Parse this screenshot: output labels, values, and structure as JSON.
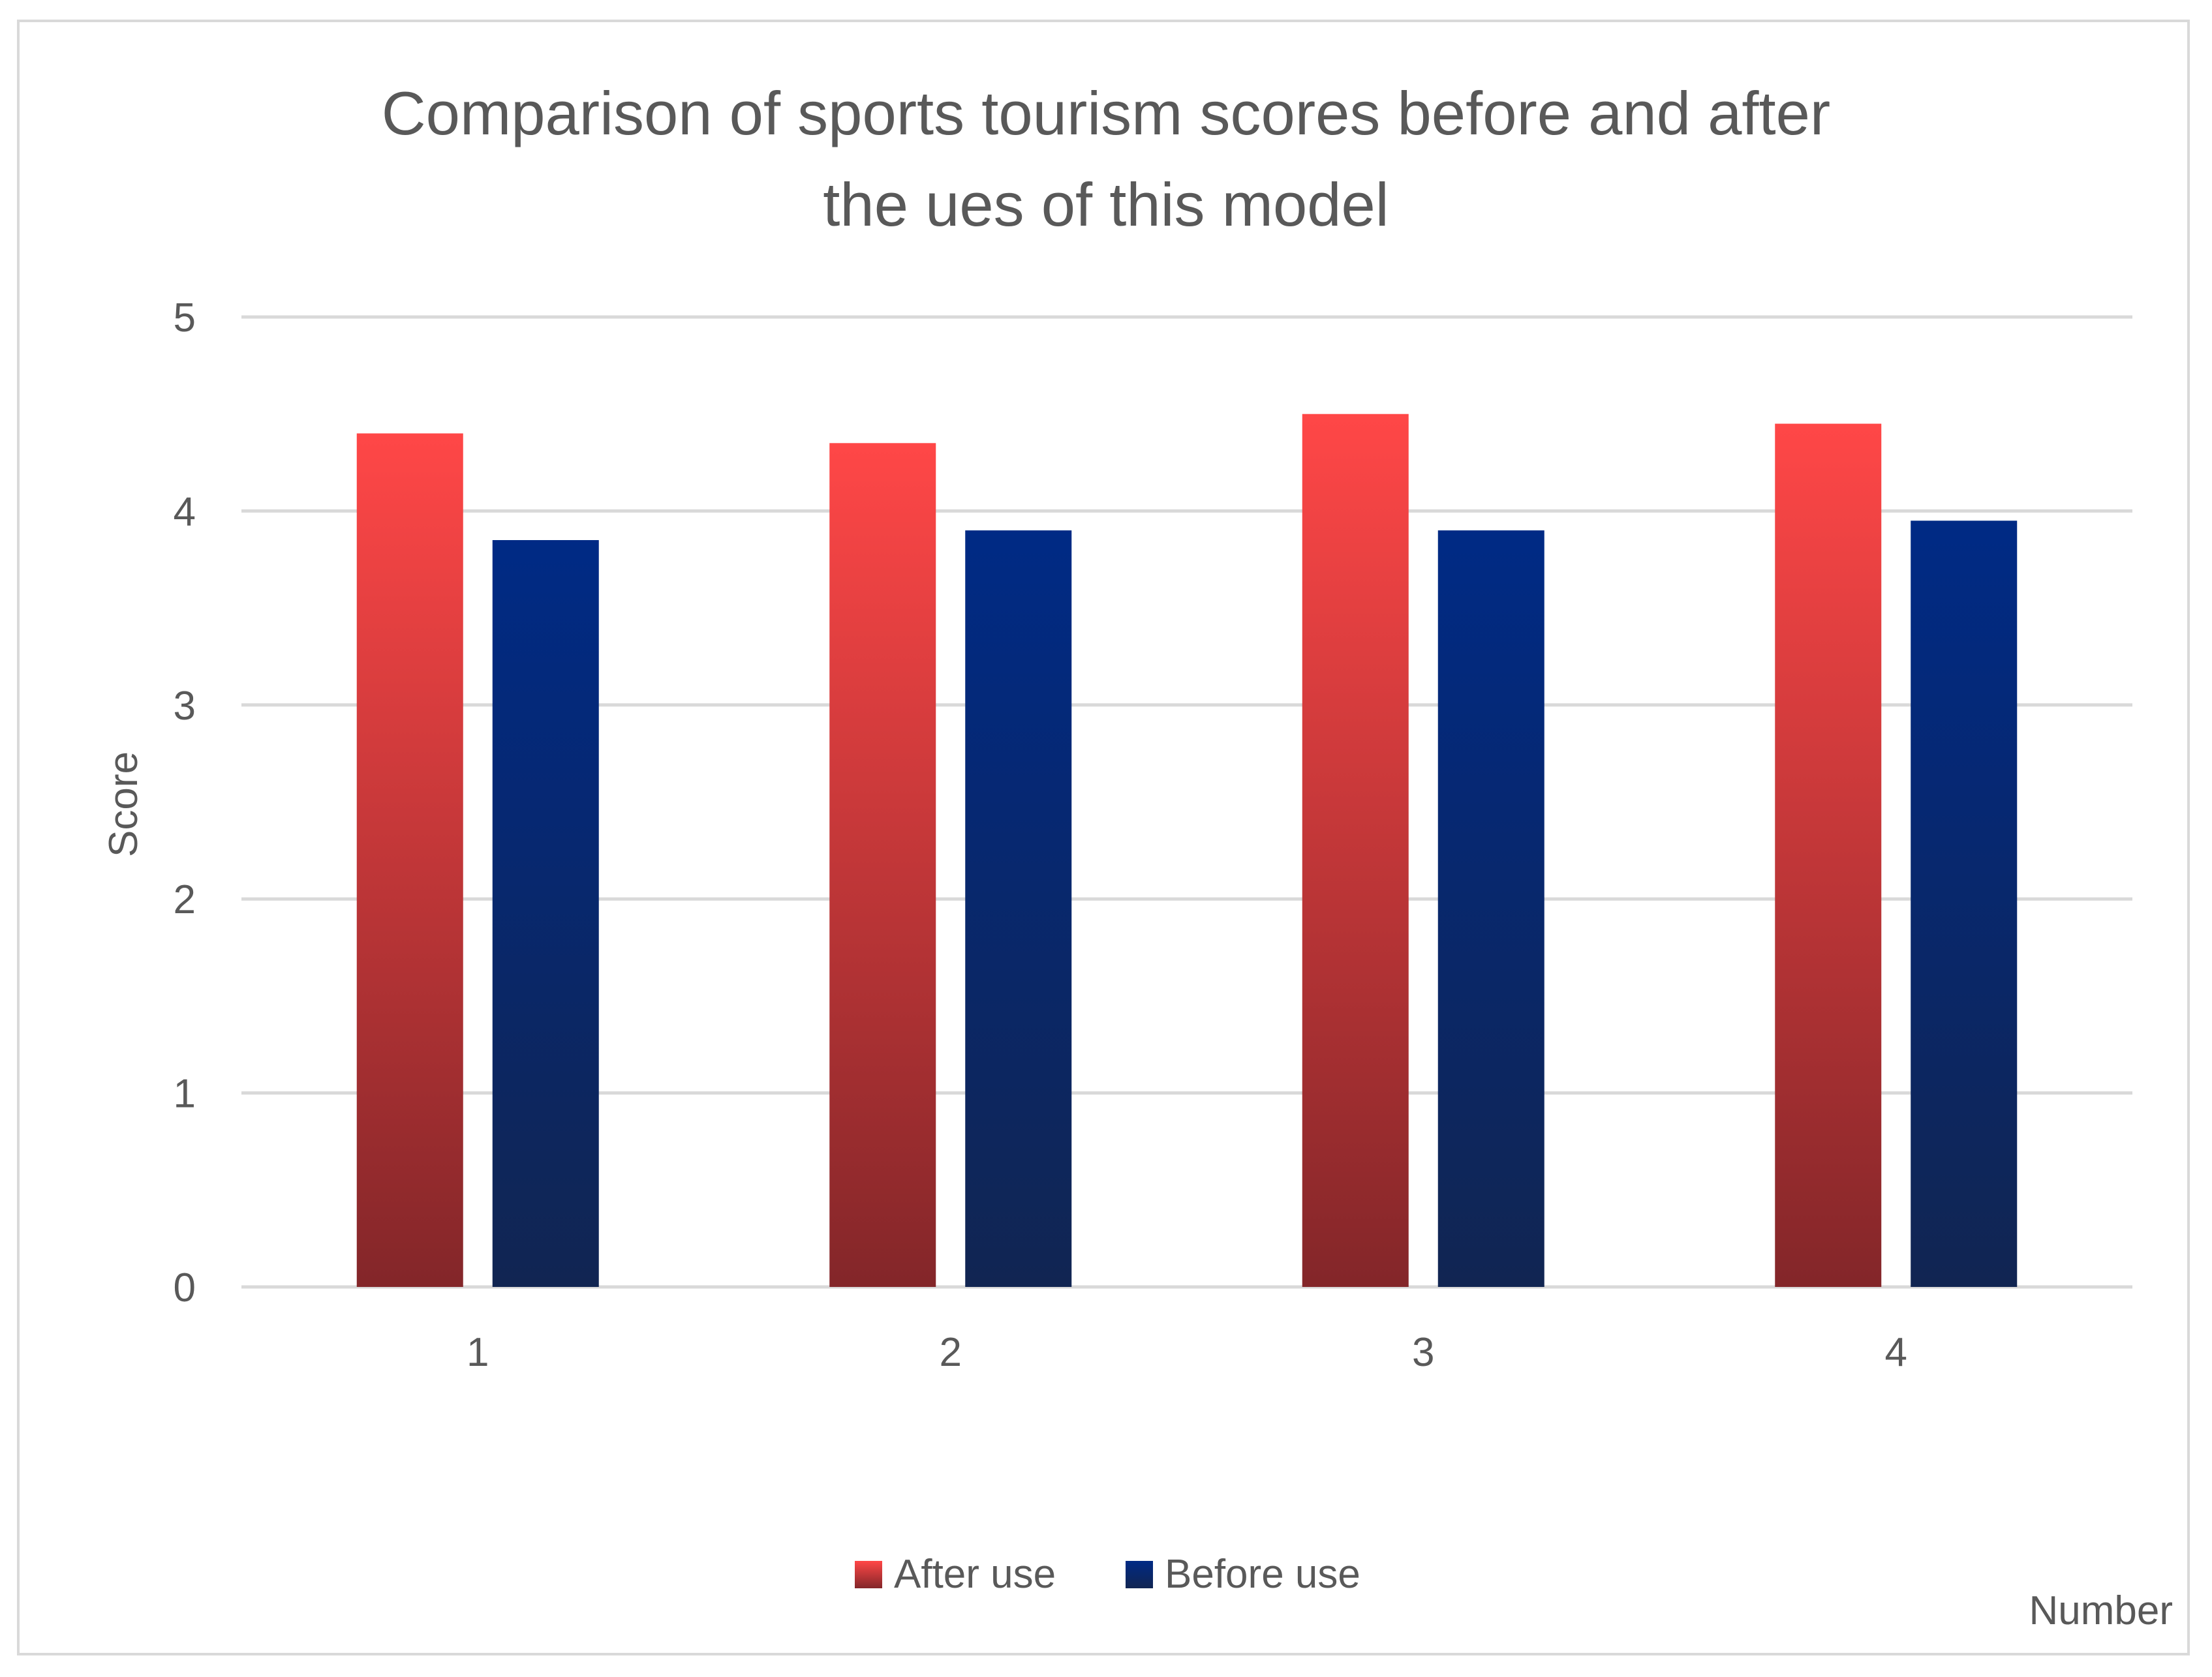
{
  "chart_data": {
    "type": "bar",
    "title_lines": [
      "Comparison of sports tourism scores before and after",
      "the ues of this model"
    ],
    "xlabel": "Number",
    "ylabel": "Score",
    "categories": [
      "1",
      "2",
      "3",
      "4"
    ],
    "series": [
      {
        "name": "After use",
        "values": [
          4.4,
          4.35,
          4.5,
          4.45
        ],
        "color_top": "#ff4747",
        "color_bottom": "#832629"
      },
      {
        "name": "Before use",
        "values": [
          3.85,
          3.9,
          3.9,
          3.95
        ],
        "color_top": "#002a85",
        "color_bottom": "#112552"
      }
    ],
    "ylim": [
      0,
      5
    ],
    "yticks": [
      "0",
      "1",
      "2",
      "3",
      "4",
      "5"
    ],
    "grid": true,
    "legend_position": "bottom"
  }
}
